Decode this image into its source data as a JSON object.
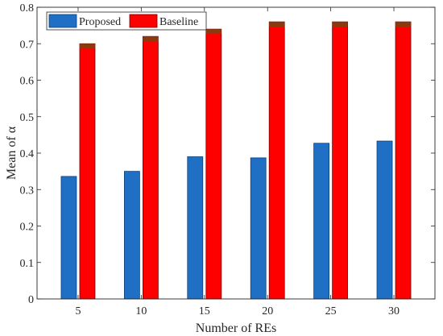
{
  "chart_data": {
    "type": "bar",
    "categories": [
      "5",
      "10",
      "15",
      "20",
      "25",
      "30"
    ],
    "series": [
      {
        "name": "Proposed",
        "values": [
          0.336,
          0.35,
          0.39,
          0.387,
          0.427,
          0.433
        ]
      },
      {
        "name": "Baseline",
        "values": [
          0.7,
          0.72,
          0.74,
          0.76,
          0.76,
          0.76
        ]
      }
    ],
    "xlabel": "Number of REs",
    "ylabel": "Mean of α",
    "ylim": [
      0,
      0.8
    ],
    "yticks": [
      0,
      0.1,
      0.2,
      0.3,
      0.4,
      0.5,
      0.6,
      0.7,
      0.8
    ],
    "ytick_labels": [
      "0",
      "0.1",
      "0.2",
      "0.3",
      "0.4",
      "0.5",
      "0.6",
      "0.7",
      "0.8"
    ],
    "grid": false,
    "legend_position": "top-left",
    "colors": {
      "proposed_fill": "#1f6fc4",
      "proposed_edge": "#0d3f7a",
      "baseline_fill": "#ff0000",
      "baseline_edge": "#7a0000",
      "baseline_cap": "#8b3a10",
      "axis": "#262626"
    }
  }
}
